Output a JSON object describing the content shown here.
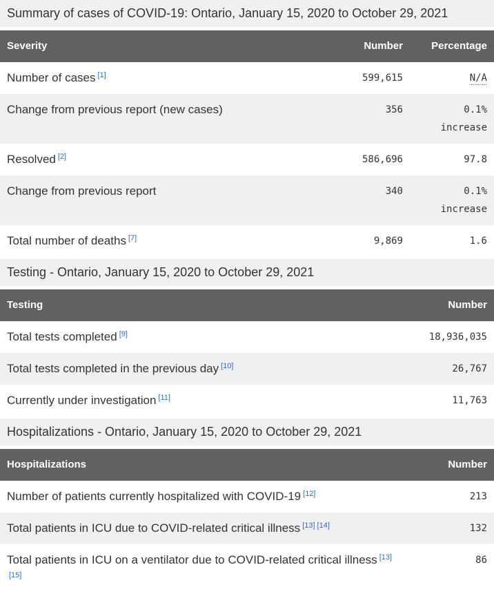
{
  "page": {
    "title": "Summary of cases of COVID-19: Ontario, January 15, 2020 to October 29, 2021"
  },
  "colors": {
    "table_header_bg": "#616161",
    "table_header_text": "#ffffff",
    "stripe_row_bg": "#f0f0f0",
    "heading_band_bg": "#f0f0f0",
    "body_text": "#333333",
    "footnote_link": "#2b6cd0"
  },
  "tables": [
    {
      "columns": [
        "Severity",
        "Number",
        "Percentage"
      ],
      "rows": [
        {
          "label": "Number of cases",
          "footnotes": [
            "[1]"
          ],
          "number": "599,615",
          "percentage": "N/A"
        },
        {
          "label": "Change from previous report (new cases)",
          "footnotes": [],
          "number": "356",
          "percentage": "0.1%",
          "percentage_line2": "increase"
        },
        {
          "label": "Resolved",
          "footnotes": [
            "[2]"
          ],
          "number": "586,696",
          "percentage": "97.8"
        },
        {
          "label": "Change from previous report",
          "footnotes": [],
          "number": "340",
          "percentage": "0.1%",
          "percentage_line2": "increase"
        },
        {
          "label": "Total number of deaths",
          "footnotes": [
            "[7]"
          ],
          "number": "9,869",
          "percentage": "1.6"
        }
      ]
    },
    {
      "heading": "Testing - Ontario, January 15, 2020 to October 29, 2021",
      "columns": [
        "Testing",
        "Number"
      ],
      "rows": [
        {
          "label": "Total tests completed",
          "footnotes": [
            "[9]"
          ],
          "number": "18,936,035"
        },
        {
          "label": "Total tests completed in the previous day",
          "footnotes": [
            "[10]"
          ],
          "number": "26,767"
        },
        {
          "label": "Currently under investigation",
          "footnotes": [
            "[11]"
          ],
          "number": "11,763"
        }
      ]
    },
    {
      "heading": "Hospitalizations - Ontario, January 15, 2020 to October 29, 2021",
      "columns": [
        "Hospitalizations",
        "Number"
      ],
      "rows": [
        {
          "label": "Number of patients currently hospitalized with COVID-19",
          "footnotes": [
            "[12]"
          ],
          "number": "213"
        },
        {
          "label": "Total patients in ICU due to COVID-related critical illness",
          "footnotes": [
            "[13]",
            "[14]"
          ],
          "number": "132"
        },
        {
          "label": "Total patients in ICU on a ventilator due to COVID-related critical illness",
          "footnotes": [
            "[13]",
            "[15]"
          ],
          "number": "86"
        }
      ]
    }
  ]
}
